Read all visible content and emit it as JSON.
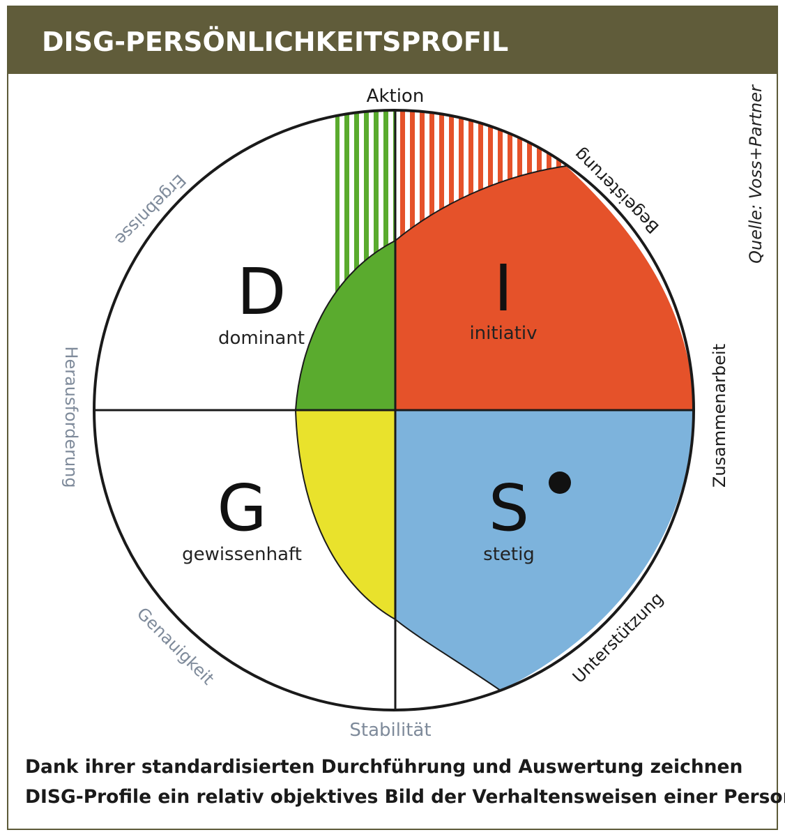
{
  "header": {
    "title": "DISG-PERSÖNLICHKEITSPROFIL"
  },
  "source": "Quelle: Voss+Partner",
  "axes": {
    "top": "Aktion",
    "bottom": "Stabilität",
    "left": "Herausforderung",
    "right": "Zusammenarbeit",
    "top_left": "Ergebnisse",
    "top_right": "Begeisterung",
    "bottom_left": "Genauigkeit",
    "bottom_right": "Unterstützung"
  },
  "quadrants": {
    "d": {
      "letter": "D",
      "label": "dominant",
      "color": "#5aab2e"
    },
    "i": {
      "letter": "I",
      "label": "initiativ",
      "color": "#e5522a"
    },
    "s": {
      "letter": "S",
      "label": "stetig",
      "color": "#7db3dc"
    },
    "g": {
      "letter": "G",
      "label": "gewissenhaft",
      "color": "#e9e22c"
    }
  },
  "colors": {
    "header": "#605c3a",
    "axis_gray": "#7e8a9a",
    "text": "#1a1a1a"
  },
  "caption": {
    "line1": "Dank ihrer standardisierten Durchführung und Auswertung zeichnen",
    "line2": "DISG-Profile ein relativ objektives Bild der Verhaltensweisen einer Person."
  }
}
